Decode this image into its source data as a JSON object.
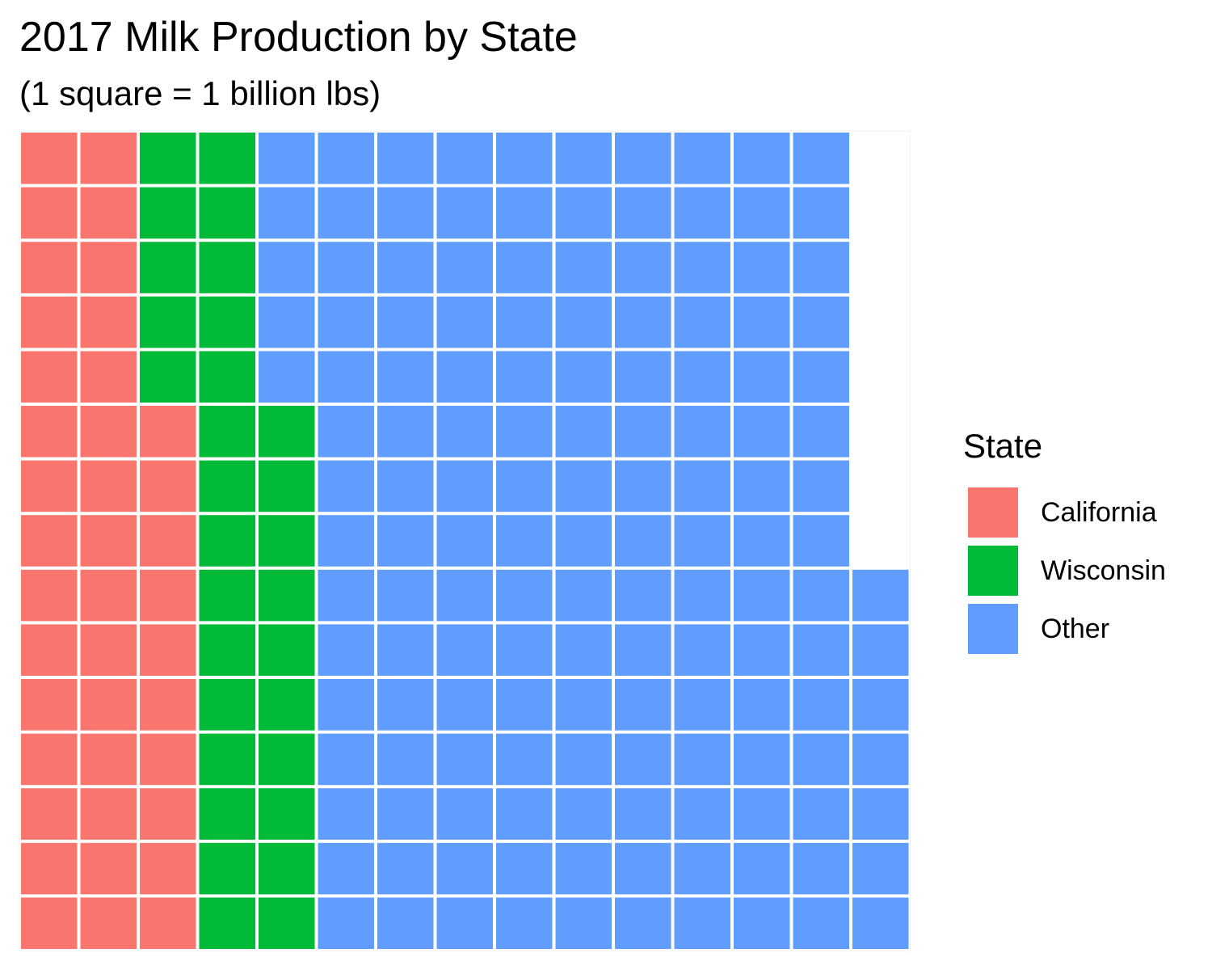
{
  "chart_data": {
    "type": "waffle",
    "title": "2017 Milk Production by State",
    "subtitle": "(1 square = 1 billion lbs)",
    "unit": "billion lbs",
    "categories": [
      "California",
      "Wisconsin",
      "Other"
    ],
    "values": [
      40,
      30,
      147
    ],
    "squares_per_column": 15,
    "fill_order": "columns-bottom-to-top",
    "legend": {
      "title": "State",
      "position": "right",
      "entries": [
        "California",
        "Wisconsin",
        "Other"
      ]
    },
    "colors": {
      "California": "#F8766D",
      "Wisconsin": "#00BA38",
      "Other": "#619CFF"
    }
  }
}
